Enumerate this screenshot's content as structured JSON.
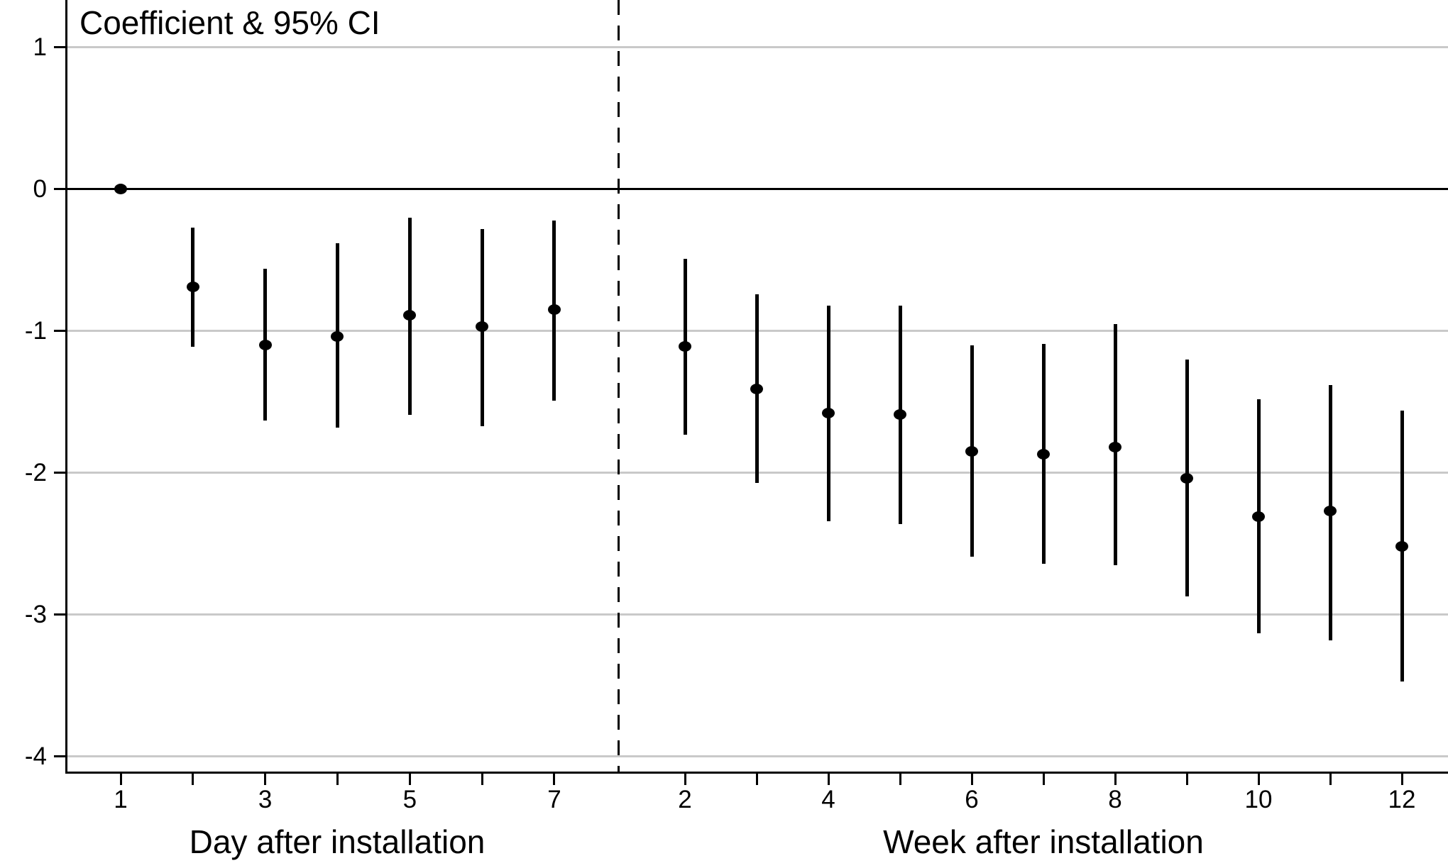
{
  "chart": {
    "title": "Coefficient & 95% CI",
    "day_axis_caption": "Day after installation",
    "week_axis_caption": "Week after installation"
  },
  "chart_data": {
    "type": "scatter",
    "subtype": "coefficient_plot_with_error_bars",
    "title": "Coefficient & 95% CI",
    "ylabel": "",
    "ylim": [
      -4.12,
      1.33
    ],
    "y_ticks": [
      1,
      0,
      -1,
      -2,
      -3,
      -4
    ],
    "grid": "horizontal light gray lines at labeled y ticks",
    "zero_line": true,
    "legend_position": "none",
    "divider": {
      "style": "dashed vertical line",
      "location": "between day panel and week panel"
    },
    "panels": [
      {
        "id": "day",
        "xlabel": "Day after installation",
        "tick_positions": [
          1,
          2,
          3,
          4,
          5,
          6,
          7
        ],
        "labeled_ticks": [
          1,
          3,
          5,
          7
        ],
        "points": [
          {
            "x": 1,
            "y": 0.0,
            "ci_high": null,
            "ci_low": null
          },
          {
            "x": 2,
            "y": -0.69,
            "ci_high": -0.27,
            "ci_low": -1.11
          },
          {
            "x": 3,
            "y": -1.1,
            "ci_high": -0.56,
            "ci_low": -1.63
          },
          {
            "x": 4,
            "y": -1.04,
            "ci_high": -0.38,
            "ci_low": -1.68
          },
          {
            "x": 5,
            "y": -0.89,
            "ci_high": -0.2,
            "ci_low": -1.59
          },
          {
            "x": 6,
            "y": -0.97,
            "ci_high": -0.28,
            "ci_low": -1.67
          },
          {
            "x": 7,
            "y": -0.85,
            "ci_high": -0.22,
            "ci_low": -1.49
          }
        ]
      },
      {
        "id": "week",
        "xlabel": "Week after installation",
        "tick_positions": [
          2,
          3,
          4,
          5,
          6,
          7,
          8,
          9,
          10,
          11,
          12
        ],
        "labeled_ticks": [
          2,
          4,
          6,
          8,
          10,
          12
        ],
        "points": [
          {
            "x": 2,
            "y": -1.11,
            "ci_high": -0.49,
            "ci_low": -1.73
          },
          {
            "x": 3,
            "y": -1.41,
            "ci_high": -0.74,
            "ci_low": -2.07
          },
          {
            "x": 4,
            "y": -1.58,
            "ci_high": -0.82,
            "ci_low": -2.34
          },
          {
            "x": 5,
            "y": -1.59,
            "ci_high": -0.82,
            "ci_low": -2.36
          },
          {
            "x": 6,
            "y": -1.85,
            "ci_high": -1.1,
            "ci_low": -2.59
          },
          {
            "x": 7,
            "y": -1.87,
            "ci_high": -1.09,
            "ci_low": -2.64
          },
          {
            "x": 8,
            "y": -1.82,
            "ci_high": -0.95,
            "ci_low": -2.65
          },
          {
            "x": 9,
            "y": -2.04,
            "ci_high": -1.2,
            "ci_low": -2.87
          },
          {
            "x": 10,
            "y": -2.31,
            "ci_high": -1.48,
            "ci_low": -3.13
          },
          {
            "x": 11,
            "y": -2.27,
            "ci_high": -1.38,
            "ci_low": -3.18
          },
          {
            "x": 12,
            "y": -2.52,
            "ci_high": -1.56,
            "ci_low": -3.47
          }
        ]
      }
    ],
    "colors": {
      "marker": "#000000",
      "ci_line": "#000000",
      "gridline": "#c9c9c9",
      "axis": "#000000",
      "background": "#ffffff"
    }
  }
}
